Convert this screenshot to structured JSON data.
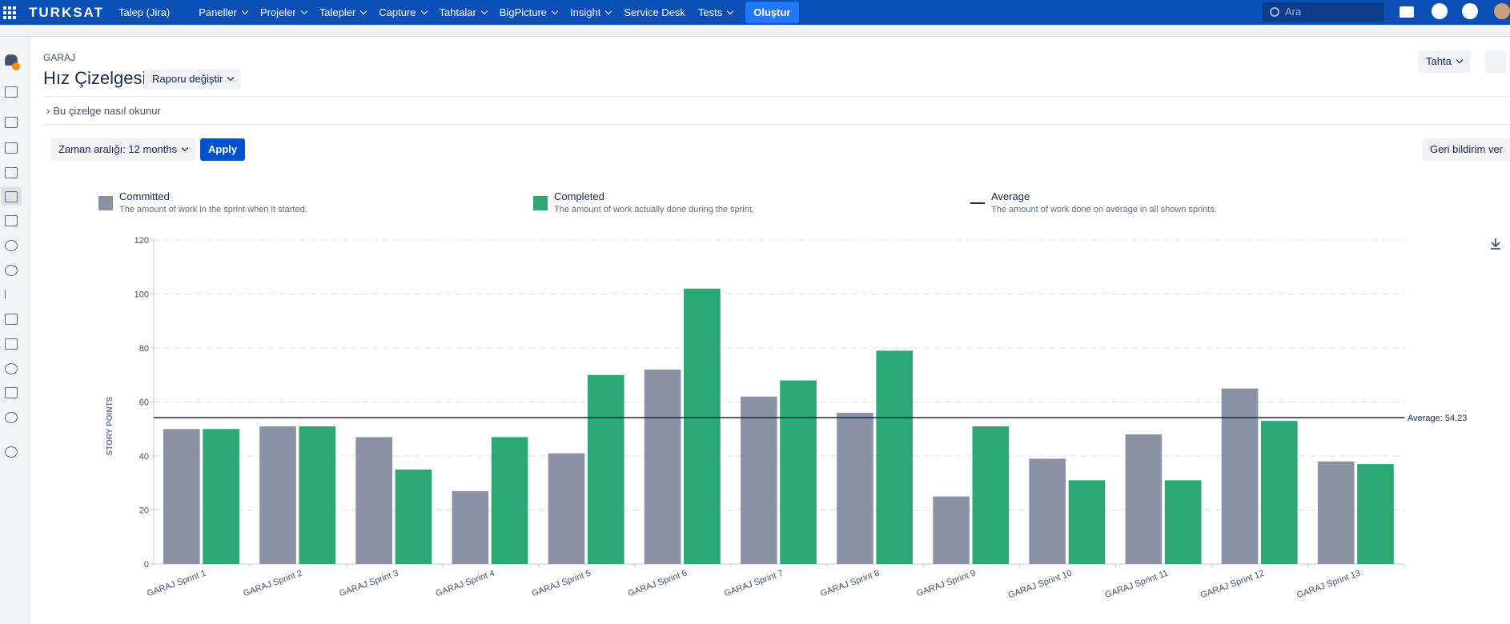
{
  "nav": {
    "logo": "TURKSAT",
    "product": "Talep (Jira)",
    "items": [
      {
        "label": "Paneller",
        "dropdown": true
      },
      {
        "label": "Projeler",
        "dropdown": true
      },
      {
        "label": "Talepler",
        "dropdown": true
      },
      {
        "label": "Capture",
        "dropdown": true
      },
      {
        "label": "Tahtalar",
        "dropdown": true
      },
      {
        "label": "BigPicture",
        "dropdown": true
      },
      {
        "label": "Insight",
        "dropdown": true
      },
      {
        "label": "Service Desk",
        "dropdown": false
      },
      {
        "label": "Tests",
        "dropdown": true
      }
    ],
    "create": "Oluştur",
    "search_placeholder": "Ara"
  },
  "header": {
    "breadcrumb": "GARAJ",
    "title": "Hız Çizelgesi",
    "report_button": "Raporu değiştir",
    "board_button": "Tahta",
    "help_link": "Bu çizelge nasıl okunur"
  },
  "filters": {
    "time_range": "Zaman aralığı: 12 months",
    "apply": "Apply",
    "feedback": "Geri bildirim ver"
  },
  "chart_data": {
    "type": "bar",
    "y_label": "STORY POINTS",
    "categories": [
      "GARAJ Sprint 1",
      "GARAJ Sprint 2",
      "GARAJ Sprint 3",
      "GARAJ Sprint 4",
      "GARAJ Sprint 5",
      "GARAJ Sprint 6",
      "GARAJ Sprint 7",
      "GARAJ Sprint 8",
      "GARAJ Sprint 9",
      "GARAJ Sprint 10",
      "GARAJ Sprint 11",
      "GARAJ Sprint 12",
      "GARAJ Sprint 13"
    ],
    "series": [
      {
        "name": "Committed",
        "description": "The amount of work in the sprint when it started.",
        "color": "#8993a4",
        "values": [
          50,
          51,
          47,
          27,
          41,
          72,
          62,
          56,
          25,
          39,
          48,
          65,
          38
        ]
      },
      {
        "name": "Completed",
        "description": "The amount of work actually done during the sprint.",
        "color": "#2ba874",
        "values": [
          50,
          51,
          35,
          47,
          70,
          102,
          68,
          79,
          51,
          31,
          31,
          53,
          37
        ]
      }
    ],
    "average": {
      "name": "Average",
      "description": "The amount of work done on average in all shown sprints.",
      "value": 54.23,
      "label": "Average: 54.23",
      "color": "#172b4d"
    },
    "ylim": [
      0,
      120
    ],
    "yticks": [
      0,
      20,
      40,
      60,
      80,
      100,
      120
    ],
    "grid": true
  }
}
